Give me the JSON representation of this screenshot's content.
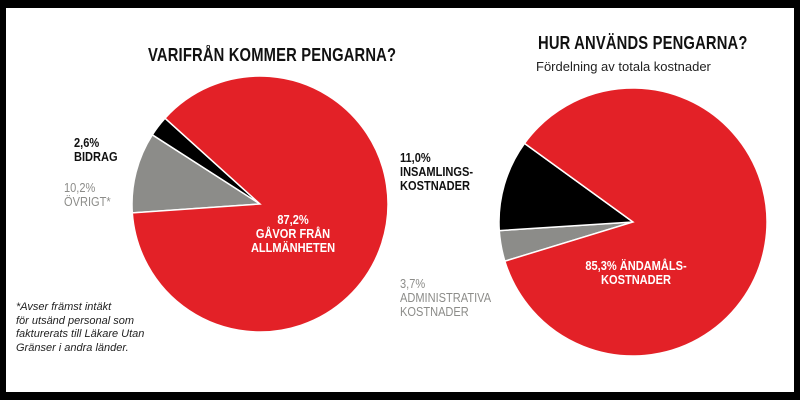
{
  "colors": {
    "red": "#e32127",
    "black": "#000000",
    "gray": "#8c8c89"
  },
  "left": {
    "title": "VARIFRÅN KOMMER PENGARNA?",
    "labels": {
      "bidrag_pct": "2,6%",
      "bidrag_name": "BIDRAG",
      "ovrigt_pct": "10,2%",
      "ovrigt_name": "ÖVRIGT*",
      "gavor_pct": "87,2%",
      "gavor_name_1": "GÅVOR FRÅN",
      "gavor_name_2": "ALLMÄNHETEN"
    },
    "footnote": {
      "line1": "*Avser främst intäkt",
      "line2": "för utsänd personal som",
      "line3": "fakturerats till Läkare Utan",
      "line4": "Gränser i andra länder."
    }
  },
  "right": {
    "title": "HUR ANVÄNDS PENGARNA?",
    "subtitle": "Fördelning av totala kostnader",
    "labels": {
      "insam_pct": "11,0%",
      "insam_name_1": "INSAMLINGS-",
      "insam_name_2": "KOSTNADER",
      "admin_pct": "3,7%",
      "admin_name_1": "ADMINISTRATIVA",
      "admin_name_2": "KOSTNADER",
      "andamal_line1": "85,3% ÄNDAMÅLS-",
      "andamal_line2": "KOSTNADER"
    }
  },
  "chart_data": [
    {
      "type": "pie",
      "title": "VARIFRÅN KOMMER PENGARNA?",
      "slices": [
        {
          "label": "GÅVOR FRÅN ALLMÄNHETEN",
          "value": 87.2,
          "color": "#e32127"
        },
        {
          "label": "BIDRAG",
          "value": 2.6,
          "color": "#000000"
        },
        {
          "label": "ÖVRIGT*",
          "value": 10.2,
          "color": "#8c8c89"
        }
      ]
    },
    {
      "type": "pie",
      "title": "HUR ANVÄNDS PENGARNA?",
      "subtitle": "Fördelning av totala kostnader",
      "slices": [
        {
          "label": "ÄNDAMÅLSKOSTNADER",
          "value": 85.3,
          "color": "#e32127"
        },
        {
          "label": "INSAMLINGSKOSTNADER",
          "value": 11.0,
          "color": "#000000"
        },
        {
          "label": "ADMINISTRATIVA KOSTNADER",
          "value": 3.7,
          "color": "#8c8c89"
        }
      ]
    }
  ]
}
